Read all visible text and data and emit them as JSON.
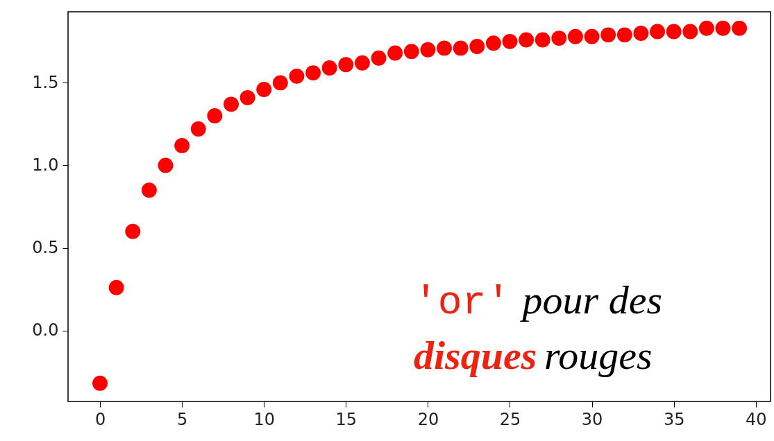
{
  "chart_data": {
    "type": "scatter",
    "x": [
      0,
      1,
      2,
      3,
      4,
      5,
      6,
      7,
      8,
      9,
      10,
      11,
      12,
      13,
      14,
      15,
      16,
      17,
      18,
      19,
      20,
      21,
      22,
      23,
      24,
      25,
      26,
      27,
      28,
      29,
      30,
      31,
      32,
      33,
      34,
      35,
      36,
      37,
      38,
      39
    ],
    "series": [
      {
        "color": "#ff0000",
        "values": [
          -0.32,
          0.26,
          0.6,
          0.85,
          1.0,
          1.12,
          1.22,
          1.3,
          1.37,
          1.41,
          1.46,
          1.5,
          1.54,
          1.56,
          1.59,
          1.61,
          1.62,
          1.65,
          1.68,
          1.69,
          1.7,
          1.71,
          1.71,
          1.72,
          1.74,
          1.75,
          1.76,
          1.76,
          1.77,
          1.78,
          1.78,
          1.79,
          1.79,
          1.8,
          1.81,
          1.81,
          1.81,
          1.83,
          1.83,
          1.83
        ]
      }
    ],
    "marker": "circle",
    "xlim": [
      -1.95,
      40.9
    ],
    "ylim": [
      -0.43,
      1.93
    ],
    "xticks": [
      0,
      5,
      10,
      15,
      20,
      25,
      30,
      35,
      40
    ],
    "yticks": [
      {
        "value": 0,
        "label": "0.0"
      },
      {
        "value": 0.5,
        "label": "0.5"
      },
      {
        "value": 1,
        "label": "1.0"
      },
      {
        "value": 1.5,
        "label": "1.5"
      }
    ],
    "grid": false,
    "annotations": [
      "'or' pour des disques rouges"
    ]
  }
}
